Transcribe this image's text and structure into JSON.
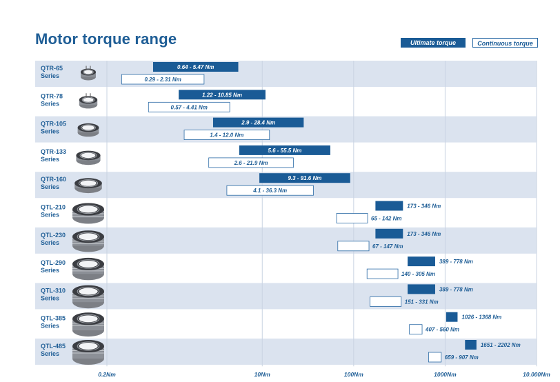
{
  "page": {
    "title": "Motor torque range"
  },
  "legend": {
    "ultimate": "Ultimate torque",
    "continuous": "Continuous torque"
  },
  "colors": {
    "bar_ultimate": "#1a5b96",
    "bar_continuous_border": "#2a6aa5",
    "row_band": "#dbe3ef",
    "text_blue": "#1f5e96"
  },
  "chart_data": {
    "type": "bar",
    "orientation": "horizontal",
    "x_scale": "log",
    "xlim": [
      0.2,
      10000
    ],
    "x_ticks": [
      {
        "value": 0.2,
        "label": "0.2Nm"
      },
      {
        "value": 10,
        "label": "10Nm"
      },
      {
        "value": 100,
        "label": "100Nm"
      },
      {
        "value": 1000,
        "label": "1000Nm"
      },
      {
        "value": 10000,
        "label": "10.000Nm"
      }
    ],
    "title": "Motor torque range",
    "legend": {
      "position": "top-right",
      "entries": [
        "Ultimate torque",
        "Continuous torque"
      ]
    },
    "categories": [
      {
        "name": "QTR-65",
        "sub": "Series",
        "ultimate": {
          "min": 0.64,
          "max": 5.47,
          "label": "0.64 - 5.47 Nm"
        },
        "continuous": {
          "min": 0.29,
          "max": 2.31,
          "label": "0.29 - 2.31 Nm"
        }
      },
      {
        "name": "QTR-78",
        "sub": "Series",
        "ultimate": {
          "min": 1.22,
          "max": 10.85,
          "label": "1.22 - 10.85 Nm"
        },
        "continuous": {
          "min": 0.57,
          "max": 4.41,
          "label": "0.57 - 4.41 Nm"
        }
      },
      {
        "name": "QTR-105",
        "sub": "Series",
        "ultimate": {
          "min": 2.9,
          "max": 28.4,
          "label": "2.9 - 28.4 Nm"
        },
        "continuous": {
          "min": 1.4,
          "max": 12.0,
          "label": "1.4 - 12.0 Nm"
        }
      },
      {
        "name": "QTR-133",
        "sub": "Series",
        "ultimate": {
          "min": 5.6,
          "max": 55.5,
          "label": "5.6 - 55.5 Nm"
        },
        "continuous": {
          "min": 2.6,
          "max": 21.9,
          "label": "2.6 - 21.9 Nm"
        }
      },
      {
        "name": "QTR-160",
        "sub": "Series",
        "ultimate": {
          "min": 9.3,
          "max": 91.6,
          "label": "9.3 - 91.6 Nm"
        },
        "continuous": {
          "min": 4.1,
          "max": 36.3,
          "label": "4.1 - 36.3 Nm"
        }
      },
      {
        "name": "QTL-210",
        "sub": "Series",
        "ultimate": {
          "min": 173,
          "max": 346,
          "label": "173 - 346 Nm"
        },
        "continuous": {
          "min": 65,
          "max": 142,
          "label": "65 - 142 Nm"
        }
      },
      {
        "name": "QTL-230",
        "sub": "Series",
        "ultimate": {
          "min": 173,
          "max": 346,
          "label": "173 - 346 Nm"
        },
        "continuous": {
          "min": 67,
          "max": 147,
          "label": "67 - 147 Nm"
        }
      },
      {
        "name": "QTL-290",
        "sub": "Series",
        "ultimate": {
          "min": 389,
          "max": 778,
          "label": "389 - 778 Nm"
        },
        "continuous": {
          "min": 140,
          "max": 305,
          "label": "140 - 305 Nm"
        }
      },
      {
        "name": "QTL-310",
        "sub": "Series",
        "ultimate": {
          "min": 389,
          "max": 778,
          "label": "389 - 778 Nm"
        },
        "continuous": {
          "min": 151,
          "max": 331,
          "label": "151 - 331 Nm"
        }
      },
      {
        "name": "QTL-385",
        "sub": "Series",
        "ultimate": {
          "min": 1026,
          "max": 1368,
          "label": "1026 - 1368 Nm"
        },
        "continuous": {
          "min": 407,
          "max": 560,
          "label": "407 - 560 Nm"
        }
      },
      {
        "name": "QTL-485",
        "sub": "Series",
        "ultimate": {
          "min": 1651,
          "max": 2202,
          "label": "1651 - 2202 Nm"
        },
        "continuous": {
          "min": 659,
          "max": 907,
          "label": "659 - 907 Nm"
        }
      }
    ]
  }
}
